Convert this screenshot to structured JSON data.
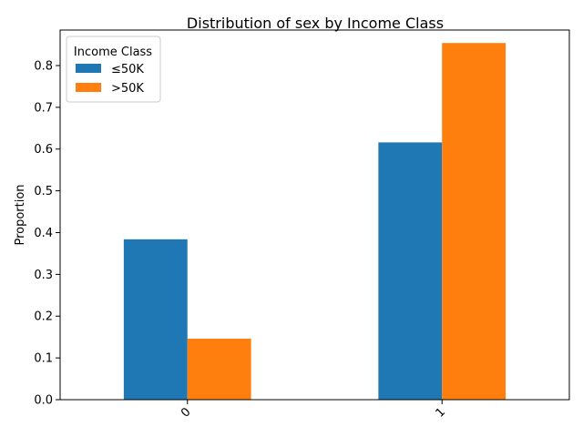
{
  "chart_data": {
    "type": "bar",
    "title": "Distribution of sex by Income Class",
    "xlabel": "",
    "ylabel": "Proportion",
    "categories": [
      "0",
      "1"
    ],
    "ylim": [
      0,
      0.885
    ],
    "yticks": [
      "0.0",
      "0.1",
      "0.2",
      "0.3",
      "0.4",
      "0.5",
      "0.6",
      "0.7",
      "0.8"
    ],
    "grid": false,
    "legend": {
      "title": "Income Class",
      "placement": "top-left"
    },
    "series": [
      {
        "name": "≤50K",
        "color": "#1f77b4",
        "values": [
          0.384,
          0.616
        ]
      },
      {
        "name": ">50K",
        "color": "#ff7f0e",
        "values": [
          0.146,
          0.854
        ]
      }
    ]
  }
}
